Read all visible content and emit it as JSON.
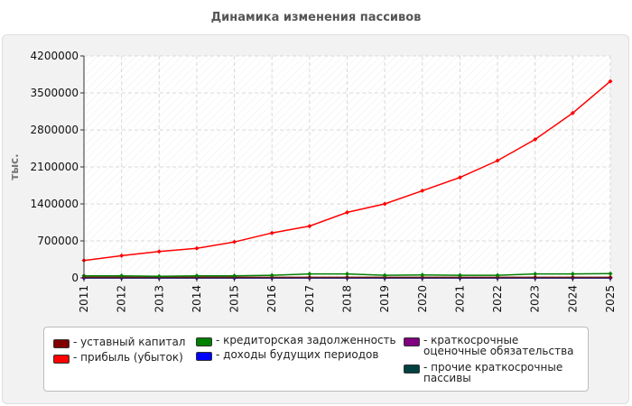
{
  "chart_data": {
    "type": "line",
    "title": "Динамика изменения пассивов",
    "ylabel": "тыс.",
    "xlabel": "",
    "x": [
      "2011",
      "2012",
      "2013",
      "2014",
      "2015",
      "2016",
      "2017",
      "2018",
      "2019",
      "2020",
      "2021",
      "2022",
      "2023",
      "2024",
      "2025"
    ],
    "ylim": [
      0,
      4200000
    ],
    "yticks": [
      "0",
      "700000",
      "1400000",
      "2100000",
      "2800000",
      "3500000",
      "4200000"
    ],
    "grid": true,
    "legend_position": "bottom",
    "series": [
      {
        "name": "уставный капитал",
        "color": "#800000",
        "values": [
          10000,
          10000,
          10000,
          10000,
          10000,
          10000,
          10000,
          10000,
          10000,
          10000,
          10000,
          10000,
          10000,
          10000,
          10000
        ]
      },
      {
        "name": "прибыль (убыток)",
        "color": "#ff0000",
        "values": [
          330000,
          420000,
          500000,
          560000,
          680000,
          850000,
          980000,
          1240000,
          1400000,
          1650000,
          1900000,
          2220000,
          2620000,
          3120000,
          3720000
        ]
      },
      {
        "name": "кредиторская задолженность",
        "color": "#008000",
        "values": [
          40000,
          40000,
          30000,
          40000,
          40000,
          50000,
          75000,
          75000,
          50000,
          55000,
          50000,
          50000,
          75000,
          75000,
          80000
        ]
      },
      {
        "name": "доходы будущих периодов",
        "color": "#0000ff",
        "values": [
          0,
          0,
          0,
          0,
          0,
          0,
          0,
          0,
          0,
          0,
          0,
          0,
          0,
          0,
          0
        ]
      },
      {
        "name": "краткосрочные оценочные обязательства",
        "color": "#800080",
        "values": [
          0,
          0,
          0,
          0,
          0,
          0,
          0,
          0,
          0,
          0,
          0,
          0,
          0,
          0,
          0
        ]
      },
      {
        "name": "прочие краткосрочные пассивы",
        "color": "#004040",
        "values": [
          0,
          0,
          0,
          0,
          0,
          0,
          0,
          0,
          0,
          0,
          0,
          0,
          0,
          0,
          0
        ]
      }
    ]
  }
}
